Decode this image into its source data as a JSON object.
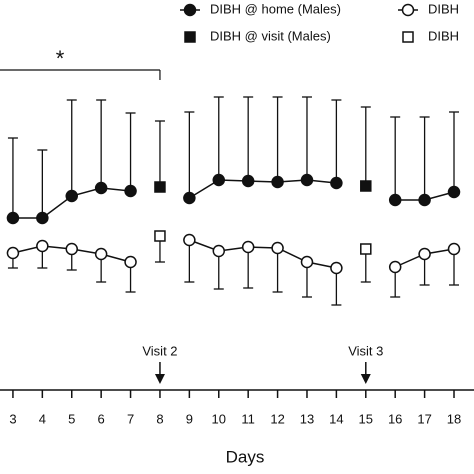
{
  "chart_data": {
    "type": "line",
    "x_label": "Days",
    "xlim": [
      2.56,
      18.68
    ],
    "xticks": [
      3,
      4,
      5,
      6,
      7,
      8,
      9,
      10,
      11,
      12,
      13,
      14,
      15,
      16,
      17,
      18
    ],
    "ylim": [
      0,
      100
    ],
    "annotations": [
      {
        "text": "*",
        "from": 2.56,
        "to": 8
      },
      {
        "text": "Visit 2",
        "x": 8
      },
      {
        "text": "Visit 3",
        "x": 15
      }
    ],
    "series": [
      {
        "name": "DIBH @ home (Males)",
        "marker": "circle",
        "filled": true,
        "line": true,
        "error_side": "up",
        "x": [
          3,
          4,
          5,
          6,
          7,
          8,
          9,
          10,
          11,
          12,
          13,
          14,
          15,
          16,
          17,
          18
        ],
        "values": [
          48.8,
          48.8,
          57.6,
          60.8,
          59.6,
          null,
          56.8,
          64,
          63.6,
          63.2,
          64,
          62.8,
          null,
          56,
          56,
          59.2
        ],
        "errors": [
          32,
          27.2,
          38.4,
          35.2,
          31.2,
          null,
          34.4,
          33.2,
          33.6,
          34,
          33.2,
          33.2,
          null,
          33.2,
          33.2,
          32
        ]
      },
      {
        "name": "DIBH @ visit (Males)",
        "marker": "square",
        "filled": true,
        "line": false,
        "error_side": "up",
        "x": [
          8,
          15
        ],
        "values": [
          61.2,
          61.6
        ],
        "errors": [
          26.4,
          31.6
        ]
      },
      {
        "name": "DIBH",
        "marker": "circle",
        "filled": false,
        "line": true,
        "error_side": "down",
        "x": [
          3,
          4,
          5,
          6,
          7,
          8,
          9,
          10,
          11,
          12,
          13,
          14,
          15,
          16,
          17,
          18
        ],
        "values": [
          34.8,
          37.6,
          36.4,
          34.4,
          31.2,
          null,
          40,
          35.6,
          37.2,
          36.8,
          31.2,
          28.8,
          null,
          29.2,
          34.4,
          36.4
        ],
        "errors": [
          6,
          8.8,
          8.4,
          11.2,
          12,
          null,
          16.8,
          15.2,
          16.4,
          17.6,
          14,
          14.8,
          null,
          12,
          12.4,
          14.4
        ]
      },
      {
        "name": "DIBH",
        "marker": "square",
        "filled": false,
        "line": false,
        "error_side": "down",
        "x": [
          8,
          15
        ],
        "values": [
          41.6,
          36.4
        ],
        "errors": [
          10.4,
          13.2
        ]
      }
    ]
  }
}
